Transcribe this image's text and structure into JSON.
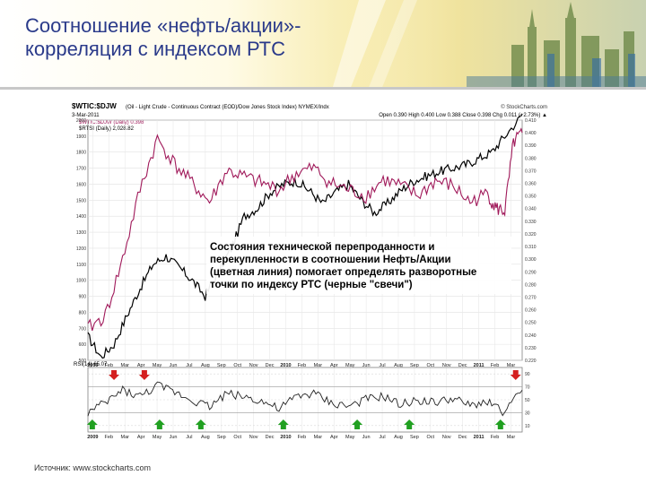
{
  "slide": {
    "title_line1": "Соотношение «нефть/акции»-",
    "title_line2": "корреляция с индексом РТС",
    "source": "Источник: www.stockcharts.com"
  },
  "chart_data": {
    "type": "line",
    "header_symbol": "$WTIC:$DJW",
    "header_desc": "(Oil - Light Crude - Continuous Contract (EOD)/Dow Jones Stock Index) NYMEX/Indx",
    "header_source": "© StockCharts.com",
    "header_date": "3-Mar-2011",
    "header_ohlc": "Open 0.390  High 0.400  Low 0.388  Close 0.398  Chg 0.011 (+2.73%) ▲",
    "legend": [
      "$WTIC:$DJW (Daily) 0.398",
      "$RTSI (Daily) 2,028.82"
    ],
    "rsi_label": "RSI(14) 65.07",
    "annotation": "Состояния технической перепроданности и перекупленности в соотношении Нефть/Акции (цветная линия) помогает определять разворотные точки по индексу РТС (черные \"свечи\")",
    "annotation_lines": [
      "Состояния технической перепроданности и",
      "перекупленности в соотношении Нефть/Акции",
      "(цветная линия) помогает определять разворотные",
      "точки по индексу РТС (черные \"свечи\")"
    ],
    "x_ticks": [
      "2009",
      "Feb",
      "Mar",
      "Apr",
      "May",
      "Jun",
      "Jul",
      "Aug",
      "Sep",
      "Oct",
      "Nov",
      "Dec",
      "2010",
      "Feb",
      "Mar",
      "Apr",
      "May",
      "Jun",
      "Jul",
      "Aug",
      "Sep",
      "Oct",
      "Nov",
      "Dec",
      "2011",
      "Feb",
      "Mar"
    ],
    "left_ticks": [
      "2000",
      "1900",
      "1800",
      "1700",
      "1600",
      "1500",
      "1400",
      "1300",
      "1200",
      "1100",
      "1000",
      "900",
      "800",
      "700",
      "600",
      "500"
    ],
    "right_ticks": [
      "0.410",
      "0.400",
      "0.390",
      "0.380",
      "0.370",
      "0.360",
      "0.350",
      "0.340",
      "0.330",
      "0.320",
      "0.310",
      "0.300",
      "0.290",
      "0.280",
      "0.270",
      "0.260",
      "0.250",
      "0.240",
      "0.230",
      "0.220"
    ],
    "rsi_ticks": [
      "90",
      "70",
      "50",
      "30",
      "10"
    ],
    "ylim_left": [
      500,
      2000
    ],
    "ylim_right": [
      0.22,
      0.41
    ],
    "ylim_rsi": [
      0,
      100
    ],
    "colors": {
      "ratio_up": "#2a2a9a",
      "ratio_down": "#a0195a",
      "rtsi": "#000000",
      "sell_arrow": "#d42020",
      "buy_arrow": "#21a021"
    },
    "rtsi_series": {
      "name": "$RTSI",
      "t": [
        0,
        0.03,
        0.06,
        0.09,
        0.12,
        0.15,
        0.18,
        0.21,
        0.24,
        0.27,
        0.3,
        0.33,
        0.36,
        0.39,
        0.42,
        0.45,
        0.48,
        0.51,
        0.54,
        0.57,
        0.6,
        0.63,
        0.66,
        0.69,
        0.72,
        0.75,
        0.78,
        0.81,
        0.84,
        0.87,
        0.9,
        0.93,
        0.96,
        1.0
      ],
      "values": [
        650,
        520,
        600,
        780,
        950,
        1100,
        1150,
        1080,
        1000,
        900,
        1050,
        1200,
        1400,
        1450,
        1550,
        1600,
        1620,
        1560,
        1480,
        1550,
        1600,
        1500,
        1420,
        1480,
        1560,
        1620,
        1650,
        1680,
        1700,
        1720,
        1760,
        1800,
        1900,
        2030
      ]
    },
    "ratio_series": {
      "name": "$WTIC:$DJW",
      "t": [
        0,
        0.04,
        0.08,
        0.12,
        0.16,
        0.2,
        0.24,
        0.28,
        0.32,
        0.36,
        0.4,
        0.44,
        0.48,
        0.52,
        0.56,
        0.6,
        0.64,
        0.68,
        0.72,
        0.76,
        0.8,
        0.84,
        0.88,
        0.92,
        0.94,
        0.96,
        0.98,
        1.0
      ],
      "values": [
        0.245,
        0.255,
        0.3,
        0.355,
        0.395,
        0.375,
        0.36,
        0.345,
        0.37,
        0.365,
        0.36,
        0.355,
        0.368,
        0.372,
        0.36,
        0.355,
        0.35,
        0.363,
        0.358,
        0.35,
        0.362,
        0.358,
        0.345,
        0.352,
        0.34,
        0.338,
        0.392,
        0.4
      ]
    },
    "rsi_series": {
      "name": "RSI(14)",
      "t": [
        0,
        0.04,
        0.08,
        0.12,
        0.16,
        0.2,
        0.24,
        0.28,
        0.32,
        0.36,
        0.4,
        0.44,
        0.48,
        0.52,
        0.56,
        0.6,
        0.64,
        0.68,
        0.72,
        0.76,
        0.8,
        0.84,
        0.88,
        0.92,
        0.96,
        1.0
      ],
      "values": [
        30,
        45,
        65,
        55,
        72,
        62,
        50,
        40,
        60,
        55,
        48,
        35,
        55,
        60,
        45,
        40,
        50,
        55,
        42,
        50,
        45,
        52,
        40,
        48,
        30,
        65
      ]
    },
    "sell_arrows_t": [
      0.06,
      0.13,
      0.985
    ],
    "buy_arrows_t": [
      0.01,
      0.165,
      0.26,
      0.45,
      0.62,
      0.74,
      0.95
    ]
  }
}
